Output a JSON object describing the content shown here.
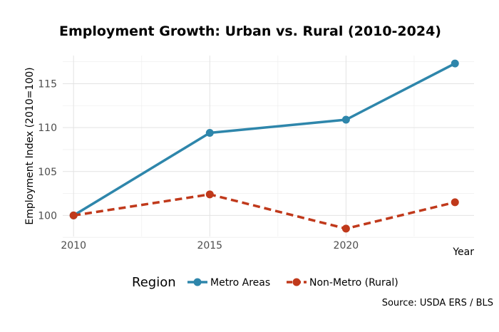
{
  "chart_data": {
    "type": "line",
    "title": "Employment Growth: Urban vs. Rural (2010-2024)",
    "xlabel": "Year",
    "ylabel": "Employment Index (2010=100)",
    "caption": "Source: USDA ERS / BLS",
    "x": [
      2010,
      2015,
      2020,
      2024
    ],
    "xticks": [
      2010,
      2015,
      2020
    ],
    "yticks": [
      100,
      105,
      110,
      115
    ],
    "xlim": [
      2008.87,
      2024.7
    ],
    "ylim": [
      97.6,
      118.2
    ],
    "grid": true,
    "legend": {
      "title": "Region",
      "placement": "bottom"
    },
    "series": [
      {
        "name": "Metro Areas",
        "values": [
          100,
          109.4,
          110.9,
          117.3
        ],
        "color": "#2E86AB",
        "dash": false
      },
      {
        "name": "Non-Metro (Rural)",
        "values": [
          100,
          102.4,
          98.5,
          101.5
        ],
        "color": "#C0391B",
        "dash": true
      }
    ]
  }
}
